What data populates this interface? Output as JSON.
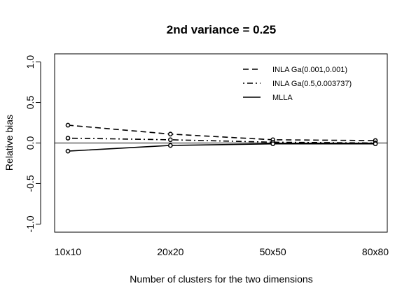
{
  "chart_data": {
    "type": "line",
    "title": "2nd variance = 0.25",
    "xlabel": "Number of clusters for the two dimensions",
    "ylabel": "Relative bias",
    "categories": [
      "10x10",
      "20x20",
      "50x50",
      "80x80"
    ],
    "yticks": [
      "-1.0",
      "-0.5",
      "0.0",
      "0.5",
      "1.0"
    ],
    "ylim": [
      -1.1,
      1.1
    ],
    "reference_line_y": 0,
    "grid": false,
    "legend_position": "top-right",
    "series": [
      {
        "name": "INLA Ga(0.001,0.001)",
        "line_style": "dashed",
        "values": [
          0.22,
          0.11,
          0.04,
          0.03
        ]
      },
      {
        "name": "INLA Ga(0.5,0.003737)",
        "line_style": "dotdash",
        "values": [
          0.06,
          0.04,
          0.01,
          0.0
        ]
      },
      {
        "name": "MLLA",
        "line_style": "solid",
        "values": [
          -0.1,
          -0.03,
          -0.01,
          -0.01
        ]
      }
    ]
  }
}
